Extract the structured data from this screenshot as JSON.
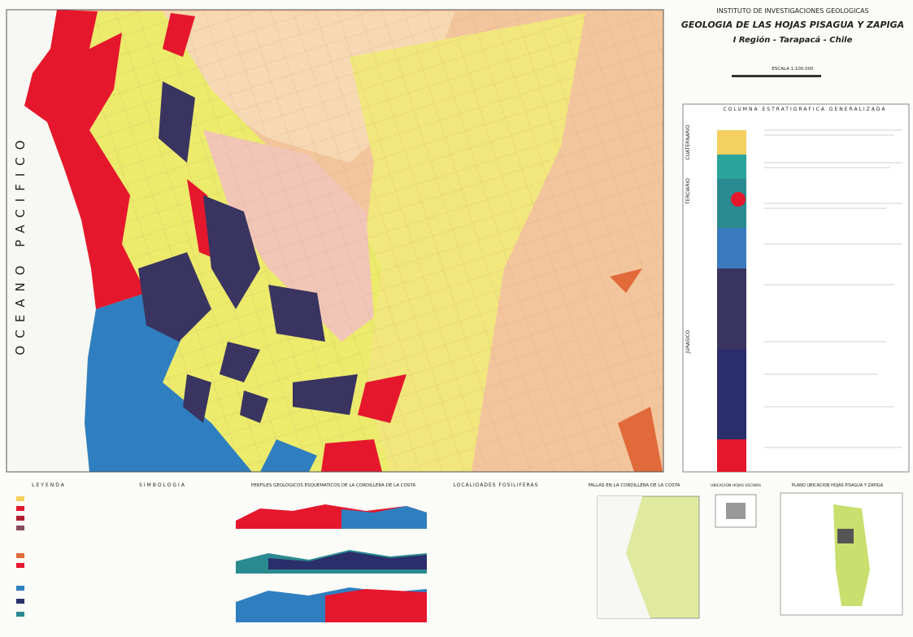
{
  "header": {
    "institute": "INSTITUTO DE INVESTIGACIONES GEOLOGICAS",
    "title": "GEOLOGIA DE LAS HOJAS PISAGUA Y ZAPIGA",
    "region": "I Región - Tarapacá - Chile",
    "scale": "ESCALA 1:100.000"
  },
  "map": {
    "ocean_label": "OCEANO PACIFICO"
  },
  "column": {
    "title": "COLUMNA ESTRATIGRAFICA GENERALIZADA",
    "periods": [
      "CUATERNARIO",
      "TERCIARIO",
      "JURASICO"
    ]
  },
  "panels": [
    "LEYENDA",
    "SIMBOLOGIA",
    "PERFILES GEOLOGICOS ESQUEMATICOS DE LA CORDILLERA DE LA COSTA",
    "LOCALIDADES FOSILIFERAS",
    "FALLAS EN LA CORDILLERA DE LA COSTA",
    "UBICACION HOJAS VECINAS",
    "PLANO UBICACION HOJAS PISAGUA Y ZAPIGA"
  ]
}
